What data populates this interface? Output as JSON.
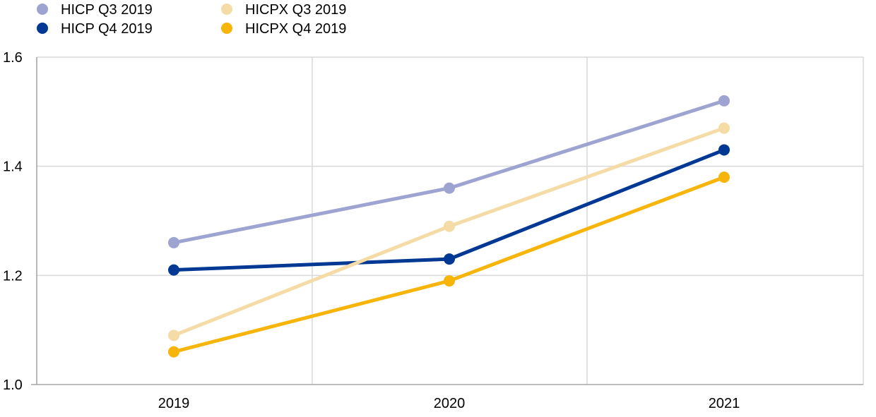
{
  "chart_data": {
    "type": "line",
    "title": "",
    "xlabel": "",
    "ylabel": "",
    "categories": [
      "2019",
      "2020",
      "2021"
    ],
    "ylim": [
      1.0,
      1.6
    ],
    "yticks": [
      "1.0",
      "1.2",
      "1.4",
      "1.6"
    ],
    "grid": true,
    "legend_position": "top-left",
    "series": [
      {
        "name": "HICP Q3 2019",
        "color": "#9da4d1",
        "values": [
          1.26,
          1.36,
          1.52
        ]
      },
      {
        "name": "HICP Q4 2019",
        "color": "#003894",
        "values": [
          1.21,
          1.23,
          1.43
        ]
      },
      {
        "name": "HICPX Q3 2019",
        "color": "#f5dca6",
        "values": [
          1.09,
          1.29,
          1.47
        ]
      },
      {
        "name": "HICPX Q4 2019",
        "color": "#f7b409",
        "values": [
          1.06,
          1.19,
          1.38
        ]
      }
    ]
  }
}
